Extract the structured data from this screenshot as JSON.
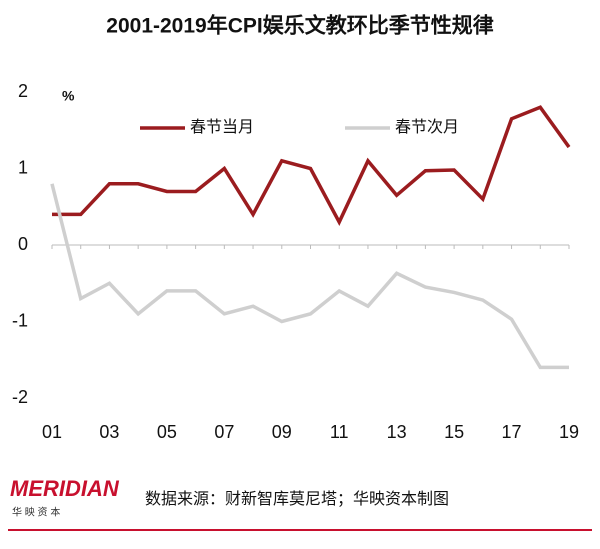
{
  "chart_data": {
    "type": "line",
    "title": "2001-2019年CPI娱乐文教环比季节性规律",
    "unit": "%",
    "categories": [
      "01",
      null,
      "03",
      null,
      "05",
      null,
      "07",
      null,
      "09",
      null,
      "11",
      null,
      "13",
      null,
      "15",
      null,
      "17",
      null,
      "19"
    ],
    "series": [
      {
        "name": "春节当月",
        "color": "#9b1c1f",
        "values": [
          0.4,
          0.4,
          0.8,
          0.8,
          0.7,
          0.7,
          1.0,
          0.4,
          1.1,
          1.0,
          0.3,
          1.1,
          0.65,
          0.97,
          0.98,
          0.6,
          1.65,
          1.8,
          1.28
        ]
      },
      {
        "name": "春节次月",
        "color": "#cfcfcf",
        "values": [
          0.8,
          -0.7,
          -0.5,
          -0.9,
          -0.6,
          -0.6,
          -0.9,
          -0.8,
          -1.0,
          -0.9,
          -0.6,
          -0.8,
          -0.37,
          -0.55,
          -0.62,
          -0.72,
          -0.97,
          -1.6,
          -1.6
        ]
      }
    ],
    "ylim": [
      -2,
      2
    ],
    "yticks": [
      -2,
      -1,
      0,
      1,
      2
    ],
    "legend": "top",
    "logo": "MERIDIAN",
    "logo_subtitle": "华 映 资 本",
    "source": "数据来源：财新智库莫尼塔；华映资本制图"
  }
}
